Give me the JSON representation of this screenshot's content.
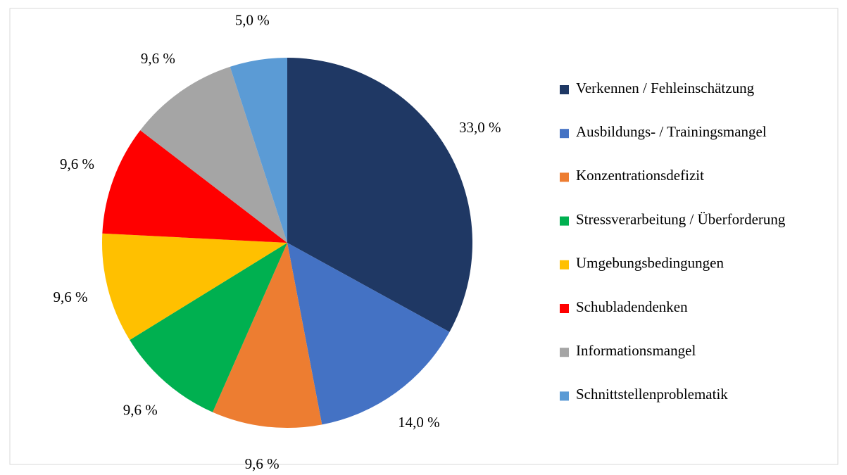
{
  "chart_data": {
    "type": "pie",
    "categories": [
      "Verkennen / Fehleinschätzung",
      "Ausbildungs- / Trainingsmangel",
      "Konzentrationsdefizit",
      "Stressverarbeitung / Überforderung",
      "Umgebungsbedingungen",
      "Schubladendenken",
      "Informationsmangel",
      "Schnittstellenproblematik"
    ],
    "values": [
      33.0,
      14.0,
      9.6,
      9.6,
      9.6,
      9.6,
      9.6,
      5.0
    ],
    "value_labels": [
      "33,0 %",
      "14,0 %",
      "9,6 %",
      "9,6 %",
      "9,6 %",
      "9,6 %",
      "9,6 %",
      "5,0 %"
    ],
    "colors": [
      "#1f3864",
      "#4472c4",
      "#ed7d31",
      "#00b050",
      "#ffc000",
      "#ff0000",
      "#a5a5a5",
      "#5b9bd5"
    ],
    "legend": "right"
  }
}
